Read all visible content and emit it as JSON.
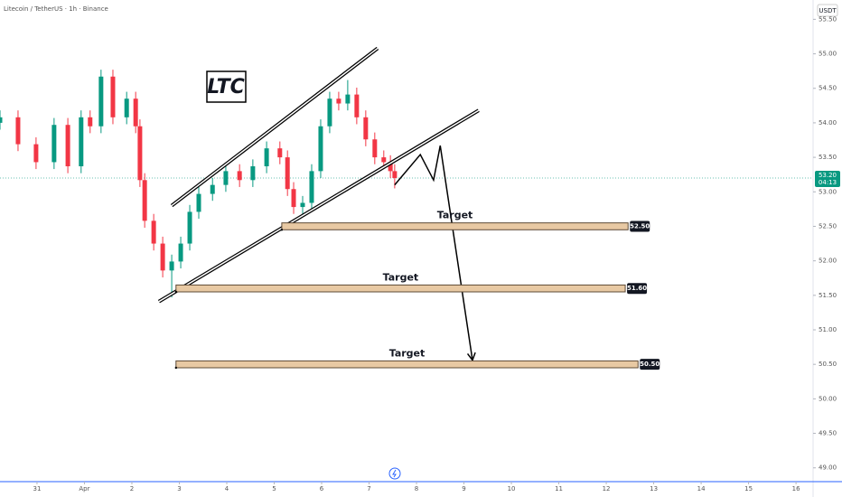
{
  "chart_data": {
    "type": "candlestick",
    "title": "Litecoin / TetherUS · 1h · Binance",
    "currency": "USDT",
    "x": [
      -0.78,
      -0.4,
      -0.02,
      0.36,
      0.65,
      0.93,
      1.12,
      1.35,
      1.6,
      1.89,
      2.08,
      2.17,
      2.27,
      2.46,
      2.65,
      2.84,
      3.03,
      3.22,
      3.41,
      3.7,
      3.98,
      4.27,
      4.55,
      4.84,
      5.12,
      5.28,
      5.41,
      5.6,
      5.79,
      5.98,
      6.17,
      6.36,
      6.55,
      6.74,
      6.93,
      7.12,
      7.31,
      7.45,
      7.54
    ],
    "open": [
      54.0,
      54.08,
      53.69,
      53.43,
      53.97,
      53.37,
      54.08,
      53.95,
      54.67,
      54.08,
      54.35,
      53.95,
      53.17,
      52.58,
      52.25,
      51.86,
      51.99,
      52.25,
      52.71,
      52.97,
      53.1,
      53.3,
      53.17,
      53.37,
      53.63,
      53.5,
      53.04,
      52.78,
      52.84,
      53.3,
      53.95,
      54.35,
      54.28,
      54.41,
      54.08,
      53.76,
      53.5,
      53.43,
      53.3
    ],
    "high": [
      54.18,
      54.18,
      53.79,
      54.07,
      54.07,
      54.18,
      54.18,
      54.77,
      54.77,
      54.45,
      54.45,
      54.05,
      53.27,
      52.68,
      52.35,
      52.09,
      52.35,
      52.81,
      53.07,
      53.2,
      53.4,
      53.4,
      53.47,
      53.73,
      53.73,
      53.6,
      53.14,
      52.94,
      53.4,
      54.05,
      54.45,
      54.45,
      54.62,
      54.51,
      54.18,
      53.86,
      53.6,
      53.53,
      53.4
    ],
    "low": [
      53.9,
      53.59,
      53.33,
      53.33,
      53.27,
      53.27,
      53.85,
      53.85,
      53.98,
      53.98,
      53.85,
      53.07,
      52.48,
      52.15,
      51.76,
      51.47,
      51.89,
      52.15,
      52.61,
      52.87,
      53.0,
      53.07,
      53.07,
      53.27,
      53.4,
      52.94,
      52.68,
      52.68,
      52.74,
      53.2,
      53.85,
      54.18,
      54.18,
      53.98,
      53.66,
      53.4,
      53.33,
      53.2,
      53.05
    ],
    "close": [
      54.08,
      53.69,
      53.43,
      53.97,
      53.37,
      54.08,
      53.95,
      54.67,
      54.08,
      54.35,
      53.95,
      53.17,
      52.58,
      52.25,
      51.86,
      51.99,
      52.25,
      52.71,
      52.97,
      53.1,
      53.3,
      53.17,
      53.37,
      53.63,
      53.5,
      53.04,
      52.78,
      52.84,
      53.3,
      53.95,
      54.35,
      54.28,
      54.41,
      54.08,
      53.76,
      53.5,
      53.43,
      53.3,
      53.2
    ],
    "up_color": "#089981",
    "down_color": "#f23645",
    "xlim": [
      -0.78,
      16.36
    ],
    "xticks": [
      {
        "value": 0,
        "label": "31"
      },
      {
        "value": 1,
        "label": "Apr"
      },
      2,
      3,
      4,
      5,
      6,
      7,
      8,
      9,
      10,
      11,
      12,
      13,
      14,
      15,
      16
    ],
    "ylim": [
      48.8,
      55.78
    ],
    "yticks": [
      {
        "value": 49,
        "label": "49.00"
      },
      {
        "value": 49.5,
        "label": "49.50"
      },
      {
        "value": 50,
        "label": "50.00"
      },
      {
        "value": 50.5,
        "label": "50.50"
      },
      {
        "value": 51,
        "label": "51.00"
      },
      {
        "value": 51.5,
        "label": "51.50"
      },
      {
        "value": 52,
        "label": "52.00"
      },
      {
        "value": 52.5,
        "label": "52.50"
      },
      {
        "value": 53,
        "label": "53.00"
      },
      {
        "value": 53.5,
        "label": "53.50"
      },
      {
        "value": 54,
        "label": "54.00"
      },
      {
        "value": 54.5,
        "label": "54.50"
      },
      {
        "value": 55,
        "label": "55.00"
      },
      {
        "value": 55.5,
        "label": "55.50"
      }
    ],
    "last_price": 53.2,
    "last_price_label": "53.20",
    "countdown": "04:13",
    "badge": "LTC",
    "channel_upper": {
      "x": [
        2.84,
        7.18
      ],
      "y": [
        52.8,
        55.08
      ]
    },
    "channel_lower": {
      "x": [
        2.57,
        9.31
      ],
      "y": [
        51.41,
        54.18
      ]
    },
    "projection": {
      "x": [
        7.54,
        8.08,
        8.36,
        8.5,
        9.18
      ],
      "y": [
        53.1,
        53.54,
        53.17,
        53.67,
        50.56
      ]
    },
    "targets": [
      {
        "label": "Target",
        "value": 52.5,
        "value_label": "52.50",
        "from": 5.16,
        "to": 12.46
      },
      {
        "label": "Target",
        "value": 51.6,
        "value_label": "51.60",
        "from": 2.93,
        "to": 12.4
      },
      {
        "label": "Target",
        "value": 50.5,
        "value_label": "50.50",
        "from": 2.93,
        "to": 12.67
      }
    ]
  }
}
